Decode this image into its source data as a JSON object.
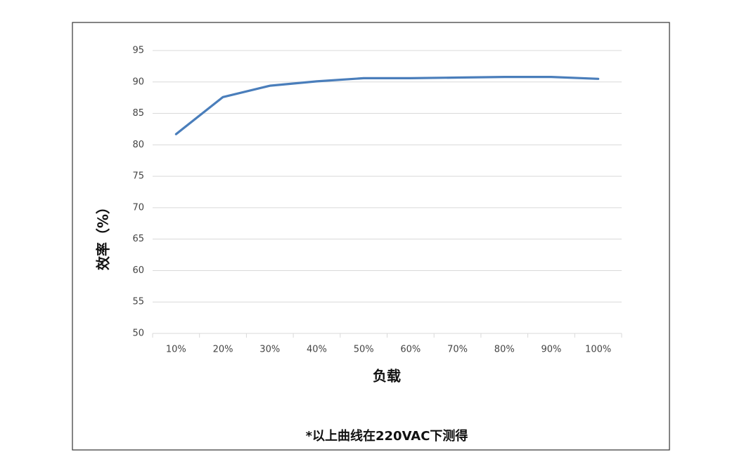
{
  "chart_data": {
    "type": "line",
    "y_label": "效率（%）",
    "x_label": "负载",
    "footnote": "*以上曲线在220VAC下测得",
    "categories": [
      "10%",
      "20%",
      "30%",
      "40%",
      "50%",
      "60%",
      "70%",
      "80%",
      "90%",
      "100%"
    ],
    "values": [
      81.7,
      87.6,
      89.4,
      90.1,
      90.6,
      90.6,
      90.7,
      90.8,
      90.8,
      90.5
    ],
    "color": "#4a7ebb",
    "ylim": [
      50,
      95
    ],
    "yticks": [
      50,
      55,
      60,
      65,
      70,
      75,
      80,
      85,
      90,
      95
    ],
    "grid": true
  }
}
